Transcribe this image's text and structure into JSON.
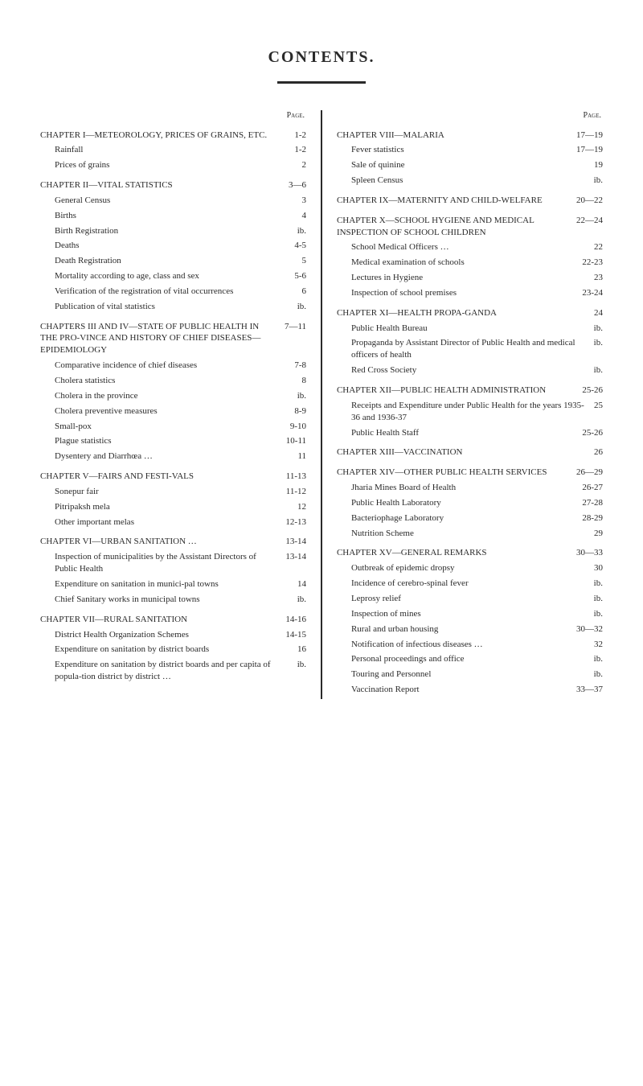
{
  "title": "CONTENTS.",
  "page_label": "Page.",
  "colors": {
    "text": "#2a2a2a",
    "background": "#ffffff"
  },
  "typography": {
    "base_size_pt": 11,
    "title_size_pt": 20,
    "family": "serif"
  },
  "left": [
    {
      "lvl": 0,
      "cls": "chapter",
      "label": "CHAPTER I—METEOROLOGY, PRICES OF GRAINS, ETC.",
      "page": "1-2"
    },
    {
      "lvl": 1,
      "label": "Rainfall",
      "page": "1-2"
    },
    {
      "lvl": 1,
      "label": "Prices of grains",
      "page": "2"
    },
    {
      "lvl": 0,
      "cls": "chapter",
      "label": "CHAPTER II—VITAL STATISTICS",
      "page": "3—6"
    },
    {
      "lvl": 1,
      "label": "General Census",
      "page": "3"
    },
    {
      "lvl": 1,
      "label": "Births",
      "page": "4"
    },
    {
      "lvl": 1,
      "label": "Birth Registration",
      "page": "ib."
    },
    {
      "lvl": 1,
      "label": "Deaths",
      "page": "4-5"
    },
    {
      "lvl": 1,
      "label": "Death Registration",
      "page": "5"
    },
    {
      "lvl": 1,
      "label": "Mortality according to age, class and sex",
      "page": "5-6"
    },
    {
      "lvl": 1,
      "label": "Verification of the registration of vital occurrences",
      "page": "6"
    },
    {
      "lvl": 1,
      "label": "Publication of vital statistics",
      "page": "ib."
    },
    {
      "lvl": 0,
      "cls": "chapter",
      "label": "CHAPTERS III AND IV—STATE OF PUBLIC HEALTH IN THE PRO-VINCE AND HISTORY OF CHIEF DISEASES—EPIDEMIOLOGY",
      "page": "7—11"
    },
    {
      "lvl": 1,
      "label": "Comparative incidence of chief diseases",
      "page": "7-8"
    },
    {
      "lvl": 1,
      "label": "Cholera statistics",
      "page": "8"
    },
    {
      "lvl": 1,
      "label": "Cholera in the province",
      "page": "ib."
    },
    {
      "lvl": 1,
      "label": "Cholera preventive measures",
      "page": "8-9"
    },
    {
      "lvl": 1,
      "label": "Small-pox",
      "page": "9-10"
    },
    {
      "lvl": 1,
      "label": "Plague statistics",
      "page": "10-11"
    },
    {
      "lvl": 1,
      "label": "Dysentery and Diarrhœa …",
      "page": "11"
    },
    {
      "lvl": 0,
      "cls": "chapter",
      "label": "CHAPTER V—FAIRS AND FESTI-VALS",
      "page": "11-13"
    },
    {
      "lvl": 1,
      "label": "Sonepur fair",
      "page": "11-12"
    },
    {
      "lvl": 1,
      "label": "Pitripaksh mela",
      "page": "12"
    },
    {
      "lvl": 1,
      "label": "Other important melas",
      "page": "12-13"
    },
    {
      "lvl": 0,
      "cls": "chapter",
      "label": "CHAPTER VI—URBAN SANITATION …",
      "page": "13-14"
    },
    {
      "lvl": 1,
      "label": "Inspection of municipalities by the Assistant Directors of Public Health",
      "page": "13-14"
    },
    {
      "lvl": 1,
      "label": "Expenditure on sanitation in munici-pal towns",
      "page": "14"
    },
    {
      "lvl": 1,
      "label": "Chief Sanitary works in municipal towns",
      "page": "ib."
    },
    {
      "lvl": 0,
      "cls": "chapter",
      "label": "CHAPTER VII—RURAL SANITATION",
      "page": "14-16"
    },
    {
      "lvl": 1,
      "label": "District Health Organization Schemes",
      "page": "14-15"
    },
    {
      "lvl": 1,
      "label": "Expenditure on sanitation by district boards",
      "page": "16"
    },
    {
      "lvl": 1,
      "label": "Expenditure on sanitation by district boards and per capita of popula-tion district by district …",
      "page": "ib."
    }
  ],
  "right": [
    {
      "lvl": 0,
      "cls": "chapter",
      "label": "CHAPTER VIII—MALARIA",
      "page": "17—19"
    },
    {
      "lvl": 1,
      "label": "Fever statistics",
      "page": "17—19"
    },
    {
      "lvl": 1,
      "label": "Sale of quinine",
      "page": "19"
    },
    {
      "lvl": 1,
      "label": "Spleen Census",
      "page": "ib."
    },
    {
      "lvl": 0,
      "cls": "chapter",
      "label": "CHAPTER IX—MATERNITY AND CHILD-WELFARE",
      "page": "20—22"
    },
    {
      "lvl": 0,
      "cls": "chapter",
      "label": "CHAPTER X—SCHOOL HYGIENE AND MEDICAL INSPECTION OF SCHOOL CHILDREN",
      "page": "22—24"
    },
    {
      "lvl": 1,
      "label": "School Medical Officers …",
      "page": "22"
    },
    {
      "lvl": 1,
      "label": "Medical examination of schools",
      "page": "22-23"
    },
    {
      "lvl": 1,
      "label": "Lectures in Hygiene",
      "page": "23"
    },
    {
      "lvl": 1,
      "label": "Inspection of school premises",
      "page": "23-24"
    },
    {
      "lvl": 0,
      "cls": "chapter",
      "label": "CHAPTER XI—HEALTH PROPA-GANDA",
      "page": "24"
    },
    {
      "lvl": 1,
      "label": "Public Health Bureau",
      "page": "ib."
    },
    {
      "lvl": 1,
      "label": "Propaganda by Assistant Director of Public Health and medical officers of health",
      "page": "ib."
    },
    {
      "lvl": 1,
      "label": "Red Cross Society",
      "page": "ib."
    },
    {
      "lvl": 0,
      "cls": "chapter",
      "label": "CHAPTER XII—PUBLIC HEALTH ADMINISTRATION",
      "page": "25-26"
    },
    {
      "lvl": 1,
      "label": "Receipts and Expenditure under Public Health for the years 1935-36 and 1936-37",
      "page": "25"
    },
    {
      "lvl": 1,
      "label": "Public Health Staff",
      "page": "25-26"
    },
    {
      "lvl": 0,
      "cls": "chapter",
      "label": "CHAPTER XIII—VACCINATION",
      "page": "26"
    },
    {
      "lvl": 0,
      "cls": "chapter",
      "label": "CHAPTER XIV—OTHER PUBLIC HEALTH SERVICES",
      "page": "26—29"
    },
    {
      "lvl": 1,
      "label": "Jharia Mines Board of Health",
      "page": "26-27"
    },
    {
      "lvl": 1,
      "label": "Public Health Laboratory",
      "page": "27-28"
    },
    {
      "lvl": 1,
      "label": "Bacteriophage Laboratory",
      "page": "28-29"
    },
    {
      "lvl": 1,
      "label": "Nutrition Scheme",
      "page": "29"
    },
    {
      "lvl": 0,
      "cls": "chapter",
      "label": "CHAPTER XV—GENERAL REMARKS",
      "page": "30—33"
    },
    {
      "lvl": 1,
      "label": "Outbreak of epidemic dropsy",
      "page": "30"
    },
    {
      "lvl": 1,
      "label": "Incidence of cerebro-spinal fever",
      "page": "ib."
    },
    {
      "lvl": 1,
      "label": "Leprosy relief",
      "page": "ib."
    },
    {
      "lvl": 1,
      "label": "Inspection of mines",
      "page": "ib."
    },
    {
      "lvl": 1,
      "label": "Rural and urban housing",
      "page": "30—32"
    },
    {
      "lvl": 1,
      "label": "Notification of infectious diseases …",
      "page": "32"
    },
    {
      "lvl": 1,
      "label": "Personal proceedings and office",
      "page": "ib."
    },
    {
      "lvl": 1,
      "label": "Touring and Personnel",
      "page": "ib."
    },
    {
      "lvl": 1,
      "label": "Vaccination Report",
      "page": "33—37"
    }
  ]
}
